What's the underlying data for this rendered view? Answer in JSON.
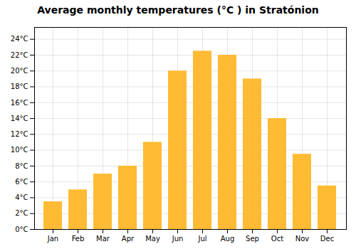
{
  "chart_data": {
    "type": "bar",
    "title": "Average monthly temperatures (°C ) in Stratónion",
    "categories": [
      "Jan",
      "Feb",
      "Mar",
      "Apr",
      "May",
      "Jun",
      "Jul",
      "Aug",
      "Sep",
      "Oct",
      "Nov",
      "Dec"
    ],
    "values": [
      3.5,
      5.0,
      7.0,
      8.0,
      11.0,
      20.0,
      22.5,
      22.0,
      19.0,
      14.0,
      9.5,
      5.5
    ],
    "color": "#FFBB33",
    "ylim": [
      0,
      25.5
    ],
    "yticks": [
      {
        "value": 0,
        "label": "0°C"
      },
      {
        "value": 2,
        "label": "2°C"
      },
      {
        "value": 4,
        "label": "4°C"
      },
      {
        "value": 6,
        "label": "6°C"
      },
      {
        "value": 8,
        "label": "8°C"
      },
      {
        "value": 10,
        "label": "10°C"
      },
      {
        "value": 12,
        "label": "12°C"
      },
      {
        "value": 14,
        "label": "14°C"
      },
      {
        "value": 16,
        "label": "16°C"
      },
      {
        "value": 18,
        "label": "18°C"
      },
      {
        "value": 20,
        "label": "20°C"
      },
      {
        "value": 22,
        "label": "22°C"
      },
      {
        "value": 24,
        "label": "24°C"
      }
    ],
    "grid": true
  }
}
